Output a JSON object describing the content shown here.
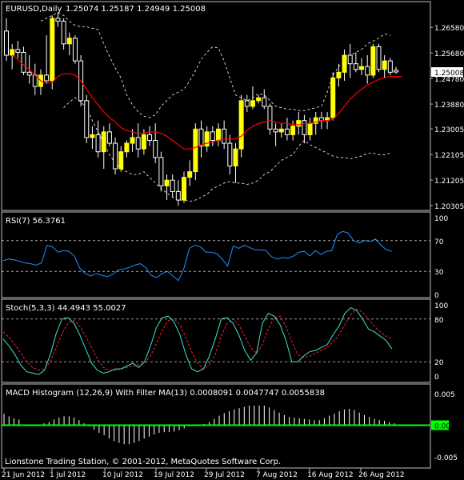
{
  "header": {
    "symbol_label": "EURUSD,Daily",
    "ohlc": "1.25074 1.25187 1.24949 1.25008"
  },
  "current_price": "1.25008",
  "copyright": "Lionstone Trading Station, © 2001-2012, MetaQuotes Software Corp.",
  "colors": {
    "background": "#000000",
    "frame": "#c0c0c0",
    "text": "#ffffff",
    "bull_candle": "#ffff00",
    "bear_candle": "#000000",
    "wick": "#ffffff",
    "ma": "#ff0000",
    "bands": "#ffffff",
    "rsi": "#1e90ff",
    "stoch_main": "#40e0d0",
    "stoch_signal": "#ff2020",
    "macd_hist": "#ffffff",
    "macd_filter": "#00ff00"
  },
  "chart_data": [
    {
      "type": "candlestick",
      "panel": "price",
      "y_ticks": [
        "1.26580",
        "1.25680",
        "1.24780",
        "1.23880",
        "1.23005",
        "1.22105",
        "1.21205",
        "1.20305"
      ],
      "ylim": [
        1.2022,
        1.2715
      ],
      "candles": [
        {
          "o": 1.2645,
          "h": 1.269,
          "l": 1.254,
          "c": 1.256
        },
        {
          "o": 1.256,
          "h": 1.26,
          "l": 1.251,
          "c": 1.258
        },
        {
          "o": 1.258,
          "h": 1.261,
          "l": 1.255,
          "c": 1.257
        },
        {
          "o": 1.257,
          "h": 1.259,
          "l": 1.249,
          "c": 1.25
        },
        {
          "o": 1.25,
          "h": 1.256,
          "l": 1.246,
          "c": 1.249
        },
        {
          "o": 1.249,
          "h": 1.253,
          "l": 1.242,
          "c": 1.245
        },
        {
          "o": 1.245,
          "h": 1.251,
          "l": 1.242,
          "c": 1.249
        },
        {
          "o": 1.249,
          "h": 1.263,
          "l": 1.246,
          "c": 1.247
        },
        {
          "o": 1.247,
          "h": 1.27,
          "l": 1.244,
          "c": 1.269
        },
        {
          "o": 1.269,
          "h": 1.271,
          "l": 1.266,
          "c": 1.268
        },
        {
          "o": 1.268,
          "h": 1.269,
          "l": 1.258,
          "c": 1.26
        },
        {
          "o": 1.26,
          "h": 1.264,
          "l": 1.256,
          "c": 1.262
        },
        {
          "o": 1.262,
          "h": 1.263,
          "l": 1.253,
          "c": 1.254
        },
        {
          "o": 1.254,
          "h": 1.256,
          "l": 1.238,
          "c": 1.24
        },
        {
          "o": 1.24,
          "h": 1.242,
          "l": 1.225,
          "c": 1.227
        },
        {
          "o": 1.227,
          "h": 1.231,
          "l": 1.223,
          "c": 1.228
        },
        {
          "o": 1.228,
          "h": 1.233,
          "l": 1.22,
          "c": 1.222
        },
        {
          "o": 1.222,
          "h": 1.231,
          "l": 1.216,
          "c": 1.229
        },
        {
          "o": 1.229,
          "h": 1.232,
          "l": 1.224,
          "c": 1.225
        },
        {
          "o": 1.225,
          "h": 1.227,
          "l": 1.214,
          "c": 1.216
        },
        {
          "o": 1.216,
          "h": 1.224,
          "l": 1.215,
          "c": 1.222
        },
        {
          "o": 1.222,
          "h": 1.226,
          "l": 1.22,
          "c": 1.225
        },
        {
          "o": 1.225,
          "h": 1.23,
          "l": 1.222,
          "c": 1.227
        },
        {
          "o": 1.227,
          "h": 1.232,
          "l": 1.22,
          "c": 1.223
        },
        {
          "o": 1.223,
          "h": 1.23,
          "l": 1.221,
          "c": 1.228
        },
        {
          "o": 1.228,
          "h": 1.231,
          "l": 1.224,
          "c": 1.226
        },
        {
          "o": 1.226,
          "h": 1.232,
          "l": 1.218,
          "c": 1.22
        },
        {
          "o": 1.22,
          "h": 1.222,
          "l": 1.208,
          "c": 1.21
        },
        {
          "o": 1.21,
          "h": 1.214,
          "l": 1.205,
          "c": 1.212
        },
        {
          "o": 1.212,
          "h": 1.214,
          "l": 1.206,
          "c": 1.208
        },
        {
          "o": 1.208,
          "h": 1.212,
          "l": 1.203,
          "c": 1.205
        },
        {
          "o": 1.205,
          "h": 1.215,
          "l": 1.204,
          "c": 1.213
        },
        {
          "o": 1.213,
          "h": 1.219,
          "l": 1.21,
          "c": 1.215
        },
        {
          "o": 1.215,
          "h": 1.232,
          "l": 1.212,
          "c": 1.23
        },
        {
          "o": 1.23,
          "h": 1.233,
          "l": 1.22,
          "c": 1.224
        },
        {
          "o": 1.224,
          "h": 1.231,
          "l": 1.222,
          "c": 1.229
        },
        {
          "o": 1.229,
          "h": 1.231,
          "l": 1.224,
          "c": 1.226
        },
        {
          "o": 1.226,
          "h": 1.232,
          "l": 1.224,
          "c": 1.23
        },
        {
          "o": 1.23,
          "h": 1.233,
          "l": 1.223,
          "c": 1.225
        },
        {
          "o": 1.225,
          "h": 1.228,
          "l": 1.214,
          "c": 1.217
        },
        {
          "o": 1.217,
          "h": 1.225,
          "l": 1.211,
          "c": 1.223
        },
        {
          "o": 1.223,
          "h": 1.242,
          "l": 1.22,
          "c": 1.24
        },
        {
          "o": 1.24,
          "h": 1.242,
          "l": 1.236,
          "c": 1.238
        },
        {
          "o": 1.238,
          "h": 1.245,
          "l": 1.237,
          "c": 1.24
        },
        {
          "o": 1.24,
          "h": 1.242,
          "l": 1.239,
          "c": 1.241
        },
        {
          "o": 1.241,
          "h": 1.244,
          "l": 1.237,
          "c": 1.238
        },
        {
          "o": 1.238,
          "h": 1.239,
          "l": 1.228,
          "c": 1.23
        },
        {
          "o": 1.23,
          "h": 1.232,
          "l": 1.224,
          "c": 1.229
        },
        {
          "o": 1.229,
          "h": 1.232,
          "l": 1.227,
          "c": 1.23
        },
        {
          "o": 1.23,
          "h": 1.234,
          "l": 1.226,
          "c": 1.228
        },
        {
          "o": 1.228,
          "h": 1.233,
          "l": 1.226,
          "c": 1.231
        },
        {
          "o": 1.231,
          "h": 1.236,
          "l": 1.228,
          "c": 1.233
        },
        {
          "o": 1.233,
          "h": 1.235,
          "l": 1.225,
          "c": 1.228
        },
        {
          "o": 1.228,
          "h": 1.234,
          "l": 1.226,
          "c": 1.232
        },
        {
          "o": 1.232,
          "h": 1.236,
          "l": 1.228,
          "c": 1.234
        },
        {
          "o": 1.234,
          "h": 1.236,
          "l": 1.23,
          "c": 1.233
        },
        {
          "o": 1.233,
          "h": 1.236,
          "l": 1.23,
          "c": 1.234
        },
        {
          "o": 1.234,
          "h": 1.25,
          "l": 1.233,
          "c": 1.248
        },
        {
          "o": 1.248,
          "h": 1.253,
          "l": 1.245,
          "c": 1.25
        },
        {
          "o": 1.25,
          "h": 1.258,
          "l": 1.247,
          "c": 1.256
        },
        {
          "o": 1.256,
          "h": 1.26,
          "l": 1.248,
          "c": 1.253
        },
        {
          "o": 1.253,
          "h": 1.257,
          "l": 1.25,
          "c": 1.251
        },
        {
          "o": 1.251,
          "h": 1.255,
          "l": 1.249,
          "c": 1.252
        },
        {
          "o": 1.252,
          "h": 1.256,
          "l": 1.246,
          "c": 1.249
        },
        {
          "o": 1.249,
          "h": 1.26,
          "l": 1.248,
          "c": 1.259
        },
        {
          "o": 1.259,
          "h": 1.26,
          "l": 1.25,
          "c": 1.251
        },
        {
          "o": 1.251,
          "h": 1.256,
          "l": 1.248,
          "c": 1.254
        },
        {
          "o": 1.254,
          "h": 1.255,
          "l": 1.249,
          "c": 1.25
        },
        {
          "o": 1.2507,
          "h": 1.2519,
          "l": 1.2495,
          "c": 1.2501
        }
      ],
      "ma": [
        1.256,
        1.2545,
        1.2525,
        1.251,
        1.249,
        1.247,
        1.246,
        1.2465,
        1.2485,
        1.2495,
        1.2495,
        1.249,
        1.247,
        1.244,
        1.241,
        1.2385,
        1.236,
        1.234,
        1.2325,
        1.2305,
        1.2295,
        1.229,
        1.2285,
        1.2285,
        1.229,
        1.229,
        1.2285,
        1.2275,
        1.226,
        1.2245,
        1.223,
        1.223,
        1.2235,
        1.2245,
        1.225,
        1.2255,
        1.226,
        1.2265,
        1.2265,
        1.2265,
        1.2275,
        1.2295,
        1.231,
        1.232,
        1.2325,
        1.233,
        1.2325,
        1.232,
        1.232,
        1.2315,
        1.2315,
        1.232,
        1.232,
        1.2325,
        1.233,
        1.233,
        1.2335,
        1.2355,
        1.238,
        1.2405,
        1.2425,
        1.244,
        1.2455,
        1.2465,
        1.2475,
        1.248,
        1.2485,
        1.2485,
        1.2485
      ],
      "upper_band": [
        null,
        null,
        null,
        null,
        null,
        null,
        1.268,
        1.269,
        1.27,
        1.271,
        1.27,
        1.268,
        1.2665,
        1.266,
        1.266,
        1.2655,
        1.265,
        1.26,
        1.2555,
        1.2515,
        1.248,
        1.242,
        1.2385,
        1.236,
        1.2345,
        1.234,
        1.235,
        1.238,
        1.24,
        1.242,
        1.243,
        1.244,
        1.247,
        1.2505,
        1.2545,
        1.257,
        1.259,
        1.2585,
        1.254,
        1.248,
        1.242,
        1.241,
        1.24,
        1.241,
        1.2425,
        1.242,
        1.24,
        1.238,
        1.2375,
        1.237,
        1.237,
        1.2365,
        1.2365,
        1.237,
        1.2375,
        1.238,
        1.243,
        1.249,
        1.252,
        1.254,
        1.256,
        1.257,
        1.258,
        1.26,
        1.261,
        1.262,
        1.2635,
        1.263,
        null
      ],
      "lower_band": [
        null,
        null,
        null,
        null,
        null,
        null,
        null,
        null,
        null,
        null,
        1.2375,
        1.2395,
        1.241,
        1.2395,
        1.2375,
        1.233,
        1.229,
        1.225,
        1.221,
        1.218,
        1.216,
        1.215,
        1.214,
        1.214,
        1.215,
        1.213,
        1.211,
        1.209,
        1.2075,
        1.206,
        1.205,
        1.205,
        1.2045,
        1.205,
        1.206,
        1.207,
        1.209,
        1.21,
        1.211,
        1.2115,
        1.211,
        1.211,
        1.2105,
        1.211,
        1.212,
        1.214,
        1.215,
        1.217,
        1.219,
        1.22,
        1.221,
        1.224,
        1.226,
        1.2245,
        1.2235,
        1.2225,
        1.2215,
        1.2205,
        1.22,
        1.22,
        1.2195,
        1.22,
        1.2205,
        1.2215,
        1.2215,
        1.221,
        1.221,
        1.2215,
        null
      ]
    },
    {
      "type": "line",
      "panel": "rsi",
      "title": "RSI(7) 56.3761",
      "y_ticks": [
        "100",
        "70",
        "30",
        "0"
      ],
      "ylim": [
        0,
        100
      ],
      "levels": [
        30,
        70
      ],
      "values": [
        44,
        46,
        45,
        43,
        41,
        40,
        38,
        41,
        64,
        62,
        55,
        57,
        56,
        50,
        34,
        27,
        24,
        27,
        25,
        23,
        26,
        32,
        33,
        35,
        38,
        40,
        35,
        25,
        22,
        27,
        30,
        24,
        18,
        34,
        60,
        64,
        62,
        55,
        55,
        53,
        46,
        37,
        63,
        60,
        64,
        61,
        58,
        58,
        57,
        49,
        46,
        48,
        47,
        50,
        55,
        56,
        50,
        57,
        52,
        56,
        57,
        78,
        82,
        80,
        70,
        67,
        70,
        69,
        72,
        64,
        58,
        56
      ]
    },
    {
      "type": "line",
      "panel": "stoch",
      "title": "Stoch(5,3,3) 44.4943 55.0027",
      "y_ticks": [
        "100",
        "80",
        "20",
        "0"
      ],
      "ylim": [
        0,
        100
      ],
      "levels": [
        20,
        80
      ],
      "series": [
        {
          "values": [
            52,
            42,
            30,
            15,
            6,
            4,
            2,
            8,
            30,
            60,
            80,
            82,
            74,
            58,
            38,
            18,
            8,
            4,
            6,
            10,
            10,
            14,
            18,
            12,
            20,
            42,
            68,
            82,
            84,
            76,
            58,
            30,
            10,
            6,
            10,
            28,
            52,
            80,
            82,
            74,
            58,
            36,
            22,
            32,
            74,
            88,
            84,
            72,
            50,
            20,
            20,
            28,
            34,
            36,
            40,
            44,
            58,
            70,
            88,
            96,
            92,
            80,
            66,
            62,
            56,
            50,
            38
          ]
        },
        {
          "values": [
            62,
            54,
            44,
            32,
            20,
            12,
            8,
            10,
            20,
            40,
            60,
            74,
            78,
            70,
            56,
            40,
            24,
            12,
            8,
            8,
            10,
            12,
            14,
            16,
            18,
            28,
            46,
            64,
            78,
            80,
            72,
            54,
            34,
            18,
            10,
            16,
            30,
            56,
            74,
            80,
            72,
            56,
            40,
            32,
            44,
            66,
            82,
            84,
            70,
            48,
            30,
            26,
            28,
            32,
            36,
            40,
            48,
            58,
            72,
            86,
            94,
            90,
            80,
            70,
            62,
            56,
            52
          ]
        }
      ]
    },
    {
      "type": "bar",
      "panel": "macd",
      "title": "MACD Histogram (12,26,9) With Filter MA(13) 0.0008091 0.0047747 0.0055838",
      "y_ticks": [
        "0.005",
        "0.00",
        "-0.005"
      ],
      "ylim": [
        -0.0055,
        0.0055
      ],
      "values": [
        0.0018,
        0.0014,
        0.0011,
        0.0009,
        0,
        0,
        0,
        0,
        0.0003,
        0.0005,
        0.0009,
        0.0012,
        0.0014,
        0.0014,
        0.0012,
        0.0008,
        0.0003,
        -0.0002,
        -0.0007,
        -0.0012,
        -0.0016,
        -0.0021,
        -0.0025,
        -0.0028,
        -0.003,
        -0.003,
        -0.0028,
        -0.0025,
        -0.0021,
        -0.0018,
        -0.0015,
        -0.0012,
        -0.0011,
        -0.0011,
        -0.001,
        -0.0008,
        -0.0005,
        -0.0002,
        0,
        0,
        0.0002,
        0.0005,
        0.001,
        0.0015,
        0.0019,
        0.0022,
        0.0025,
        0.0027,
        0.0029,
        0.0031,
        0.0031,
        0.0031,
        0.0031,
        0.0028,
        0.0024,
        0.002,
        0.0016,
        0.0013,
        0.0012,
        0.0011,
        0.001,
        0.0009,
        0.0008,
        0.0008,
        0.0011,
        0.0015,
        0.0018,
        0.0022,
        0.0025,
        0.0026,
        0.0024,
        0.002,
        0.0016,
        0.0013,
        0.001,
        0.0008,
        0.0007,
        0.0005,
        0.0003
      ],
      "filter_value": 0
    },
    {
      "type": "axis",
      "panel": "time",
      "x_ticks": [
        "21 Jun 2012",
        "1 Jul 2012",
        "10 Jul 2012",
        "19 Jul 2012",
        "29 Jul 2012",
        "7 Aug 2012",
        "16 Aug 2012",
        "26 Aug 2012"
      ]
    }
  ]
}
